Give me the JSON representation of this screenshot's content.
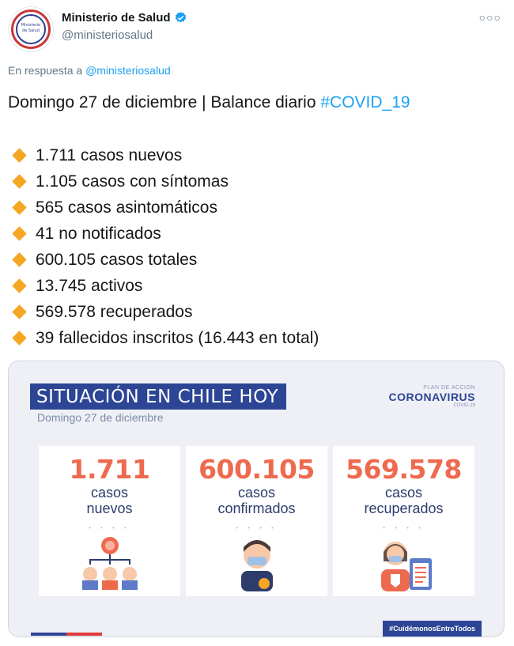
{
  "account": {
    "name": "Ministerio de Salud",
    "handle": "@ministeriosalud",
    "avatar_text": "Ministerio de Salud"
  },
  "reply": {
    "prefix": "En respuesta a",
    "mention": "@ministeriosalud"
  },
  "tweet": {
    "title": "Domingo 27 de diciembre | Balance diario",
    "hashtag": "#COVID_19",
    "items": [
      "1.711 casos nuevos",
      "1.105 casos con síntomas",
      "565 casos asintomáticos",
      "41 no notificados",
      "600.105 casos totales",
      "13.745 activos",
      "569.578 recuperados",
      "39 fallecidos inscritos (16.443 en total)"
    ]
  },
  "card": {
    "banner": "SITUACIÓN EN CHILE HOY",
    "date": "Domingo 27 de diciembre",
    "brand_small": "PLAN DE ACCIÓN",
    "brand_big": "CORONAVIRUS",
    "brand_sub": "COVID-19",
    "stats": [
      {
        "number": "1.711",
        "label1": "casos",
        "label2": "nuevos"
      },
      {
        "number": "600.105",
        "label1": "casos",
        "label2": "confirmados"
      },
      {
        "number": "569.578",
        "label1": "casos",
        "label2": "recuperados"
      }
    ],
    "dots": "• • • •",
    "hashtag": "#CuidémonosEntreTodos"
  },
  "colors": {
    "accent": "#1da1f2",
    "diamond": "#f5a623",
    "banner": "#2c4595",
    "stat_number": "#ee6a4f"
  }
}
